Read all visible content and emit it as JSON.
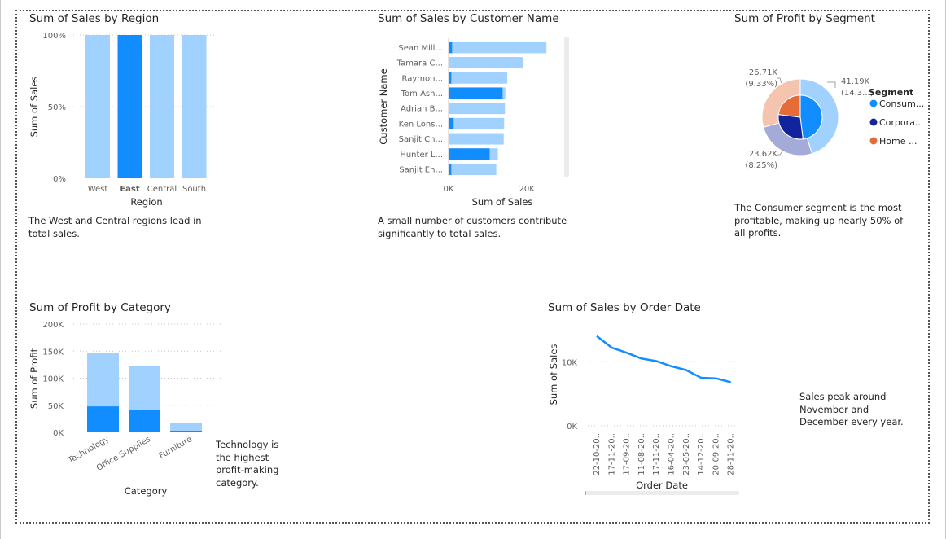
{
  "colors": {
    "light": "#a0d1ff",
    "dark": "#118dff",
    "navy": "#12239e",
    "orange": "#e66c37",
    "peach": "#f5c4af",
    "lavender": "#a5abd8",
    "text": "#252423",
    "tick": "#605e5c"
  },
  "titles": {
    "region": "Sum of Sales by Region",
    "customer": "Sum of Sales by Customer Name",
    "segment": "Sum of Profit by Segment",
    "category": "Sum of Profit by Category",
    "date": "Sum of Sales by Order Date"
  },
  "notes": {
    "region": "The West and Central regions lead in total sales.",
    "customer": "A small number of customers contribute significantly to total sales.",
    "segment": "The Consumer segment is the most profitable, making up nearly 50% of all profits.",
    "category": "Technology is the highest profit-making category.",
    "date": "Sales peak around November and December every year."
  },
  "chart_data": [
    {
      "id": "region",
      "type": "bar",
      "stacking": "100%",
      "title": "Sum of Sales by Region",
      "xlabel": "Region",
      "ylabel": "Sum of Sales",
      "categories": [
        "West",
        "East",
        "Central",
        "South"
      ],
      "highlighted": "East",
      "values": [
        100,
        100,
        100,
        100
      ],
      "yticks": [
        "0%",
        "50%",
        "100%"
      ],
      "ylim": [
        0,
        100
      ],
      "grid": true
    },
    {
      "id": "customer",
      "type": "bar",
      "orientation": "horizontal",
      "title": "Sum of Sales by Customer Name",
      "xlabel": "Sum of Sales",
      "ylabel": "Customer Name",
      "categories": [
        "Sean Mill...",
        "Tamara C...",
        "Raymon...",
        "Tom Ash...",
        "Adrian B...",
        "Ken Lons...",
        "Sanjit Ch...",
        "Hunter L...",
        "Sanjit En..."
      ],
      "series": [
        {
          "values": [
            25000,
            19000,
            15000,
            14500,
            14400,
            14200,
            14100,
            12600,
            12200
          ]
        },
        {
          "values": [
            900,
            0,
            700,
            13800,
            0,
            1300,
            0,
            10500,
            700
          ]
        }
      ],
      "xticks": [
        "0K",
        "20K"
      ],
      "xlim": [
        0,
        31000
      ]
    },
    {
      "id": "segment",
      "type": "pie",
      "variant": "donut",
      "title": "Sum of Profit by Segment",
      "legend_title": "Segment",
      "legend_position": "right",
      "legend": [
        "Consum...",
        "Corpora...",
        "Home ..."
      ],
      "outer_labels": [
        {
          "value": "41.19K",
          "percent": "(14.3...)"
        },
        {
          "value": "23.62K",
          "percent": "(8.25%)"
        },
        {
          "value": "26.71K",
          "percent": "(9.33%)"
        }
      ],
      "outer_values": [
        41.19,
        23.62,
        26.71
      ],
      "inner_values": [
        48,
        29,
        23
      ]
    },
    {
      "id": "category",
      "type": "bar",
      "stacking": "stacked",
      "title": "Sum of Profit by Category",
      "xlabel": "Category",
      "ylabel": "Sum of Profit",
      "categories": [
        "Technology",
        "Office Supplies",
        "Furniture"
      ],
      "series": [
        {
          "values": [
            48000,
            42000,
            3000
          ]
        },
        {
          "values": [
            98000,
            80000,
            15000
          ]
        }
      ],
      "yticks": [
        "0K",
        "50K",
        "100K",
        "150K",
        "200K"
      ],
      "ylim": [
        0,
        200000
      ],
      "grid": true
    },
    {
      "id": "date",
      "type": "line",
      "title": "Sum of Sales by Order Date",
      "xlabel": "Order Date",
      "ylabel": "Sum of Sales",
      "x": [
        "22-10-20..",
        "17-11-20..",
        "17-09-20..",
        "11-08-20..",
        "17-11-20..",
        "16-04-20..",
        "23-05-20..",
        "14-12-20..",
        "20-09-20..",
        "28-11-20.."
      ],
      "values": [
        14000,
        12200,
        11400,
        10500,
        10100,
        9300,
        8700,
        7500,
        7400,
        6800
      ],
      "yticks": [
        "0K",
        "10K"
      ],
      "ylim": [
        0,
        16000
      ],
      "grid": true
    }
  ]
}
